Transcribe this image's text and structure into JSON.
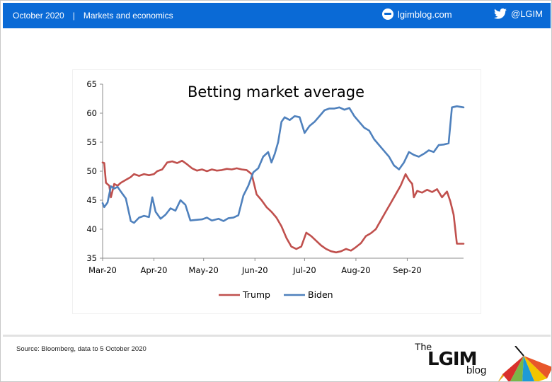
{
  "header": {
    "date": "October 2020",
    "separator": "|",
    "section": "Markets and economics",
    "site": "lgimblog.com",
    "twitter": "@LGIM"
  },
  "source_note": "Source: Bloomberg, data to 5 October 2020",
  "logo": {
    "the": "The",
    "name": "LGIM",
    "blog": "blog"
  },
  "colors": {
    "header_bg": "#0a6ad6",
    "trump": "#c0504d",
    "biden": "#4f81bd"
  },
  "chart_data": {
    "type": "line",
    "title": "Betting market average",
    "xlabel": "",
    "ylabel": "",
    "ylim": [
      35,
      65
    ],
    "yticks": [
      35,
      40,
      45,
      50,
      55,
      60,
      65
    ],
    "xlim": [
      "2020-03-01",
      "2020-10-05"
    ],
    "xticks": [
      {
        "date": "2020-03-01",
        "label": "Mar-20"
      },
      {
        "date": "2020-04-01",
        "label": "Apr-20"
      },
      {
        "date": "2020-05-01",
        "label": "May-20"
      },
      {
        "date": "2020-06-01",
        "label": "Jun-20"
      },
      {
        "date": "2020-07-01",
        "label": "Jul-20"
      },
      {
        "date": "2020-08-01",
        "label": "Aug-20"
      },
      {
        "date": "2020-09-01",
        "label": "Sep-20"
      }
    ],
    "grid": false,
    "legend": "bottom",
    "series": [
      {
        "name": "Trump",
        "color": "#c0504d",
        "points": [
          [
            "2020-03-01",
            51.5
          ],
          [
            "2020-03-02",
            51.4
          ],
          [
            "2020-03-03",
            48
          ],
          [
            "2020-03-05",
            47.5
          ],
          [
            "2020-03-06",
            45.5
          ],
          [
            "2020-03-08",
            47.8
          ],
          [
            "2020-03-10",
            47.5
          ],
          [
            "2020-03-12",
            48
          ],
          [
            "2020-03-15",
            48.5
          ],
          [
            "2020-03-18",
            49
          ],
          [
            "2020-03-20",
            49.5
          ],
          [
            "2020-03-23",
            49.2
          ],
          [
            "2020-03-26",
            49.5
          ],
          [
            "2020-03-29",
            49.3
          ],
          [
            "2020-04-01",
            49.5
          ],
          [
            "2020-04-03",
            50
          ],
          [
            "2020-04-06",
            50.3
          ],
          [
            "2020-04-09",
            51.5
          ],
          [
            "2020-04-12",
            51.7
          ],
          [
            "2020-04-15",
            51.4
          ],
          [
            "2020-04-18",
            51.8
          ],
          [
            "2020-04-21",
            51.2
          ],
          [
            "2020-04-24",
            50.5
          ],
          [
            "2020-04-27",
            50.1
          ],
          [
            "2020-04-30",
            50.3
          ],
          [
            "2020-05-03",
            50
          ],
          [
            "2020-05-06",
            50.3
          ],
          [
            "2020-05-09",
            50.1
          ],
          [
            "2020-05-12",
            50.2
          ],
          [
            "2020-05-15",
            50.4
          ],
          [
            "2020-05-18",
            50.3
          ],
          [
            "2020-05-21",
            50.5
          ],
          [
            "2020-05-24",
            50.3
          ],
          [
            "2020-05-27",
            50.2
          ],
          [
            "2020-05-30",
            49.5
          ],
          [
            "2020-06-02",
            46
          ],
          [
            "2020-06-05",
            45
          ],
          [
            "2020-06-08",
            43.8
          ],
          [
            "2020-06-11",
            43
          ],
          [
            "2020-06-14",
            42
          ],
          [
            "2020-06-17",
            40.5
          ],
          [
            "2020-06-20",
            38.5
          ],
          [
            "2020-06-23",
            37
          ],
          [
            "2020-06-26",
            36.6
          ],
          [
            "2020-06-29",
            37
          ],
          [
            "2020-07-02",
            39.4
          ],
          [
            "2020-07-05",
            38.8
          ],
          [
            "2020-07-08",
            38
          ],
          [
            "2020-07-11",
            37.2
          ],
          [
            "2020-07-14",
            36.6
          ],
          [
            "2020-07-17",
            36.2
          ],
          [
            "2020-07-20",
            36
          ],
          [
            "2020-07-23",
            36.2
          ],
          [
            "2020-07-26",
            36.6
          ],
          [
            "2020-07-29",
            36.3
          ],
          [
            "2020-08-01",
            36.9
          ],
          [
            "2020-08-04",
            37.6
          ],
          [
            "2020-08-07",
            38.8
          ],
          [
            "2020-08-10",
            39.3
          ],
          [
            "2020-08-13",
            40
          ],
          [
            "2020-08-16",
            41.5
          ],
          [
            "2020-08-19",
            43
          ],
          [
            "2020-08-22",
            44.5
          ],
          [
            "2020-08-25",
            46
          ],
          [
            "2020-08-28",
            47.5
          ],
          [
            "2020-08-31",
            49.5
          ],
          [
            "2020-09-02",
            48.5
          ],
          [
            "2020-09-04",
            47.8
          ],
          [
            "2020-09-05",
            45.5
          ],
          [
            "2020-09-07",
            46.6
          ],
          [
            "2020-09-10",
            46.3
          ],
          [
            "2020-09-13",
            46.8
          ],
          [
            "2020-09-16",
            46.4
          ],
          [
            "2020-09-19",
            46.9
          ],
          [
            "2020-09-22",
            45.5
          ],
          [
            "2020-09-25",
            46.5
          ],
          [
            "2020-09-27",
            44.8
          ],
          [
            "2020-09-29",
            42.5
          ],
          [
            "2020-10-01",
            37.5
          ],
          [
            "2020-10-05",
            37.5
          ]
        ]
      },
      {
        "name": "Biden",
        "color": "#4f81bd",
        "points": [
          [
            "2020-03-01",
            44.5
          ],
          [
            "2020-03-02",
            43.8
          ],
          [
            "2020-03-04",
            44.6
          ],
          [
            "2020-03-06",
            47.4
          ],
          [
            "2020-03-08",
            47
          ],
          [
            "2020-03-10",
            47.3
          ],
          [
            "2020-03-12",
            46.5
          ],
          [
            "2020-03-15",
            45.3
          ],
          [
            "2020-03-18",
            41.4
          ],
          [
            "2020-03-20",
            41.1
          ],
          [
            "2020-03-23",
            42
          ],
          [
            "2020-03-26",
            42.3
          ],
          [
            "2020-03-29",
            42.1
          ],
          [
            "2020-03-31",
            45.5
          ],
          [
            "2020-04-02",
            43
          ],
          [
            "2020-04-05",
            41.8
          ],
          [
            "2020-04-08",
            42.5
          ],
          [
            "2020-04-11",
            43.6
          ],
          [
            "2020-04-14",
            43.2
          ],
          [
            "2020-04-17",
            45
          ],
          [
            "2020-04-20",
            44.2
          ],
          [
            "2020-04-23",
            41.5
          ],
          [
            "2020-04-26",
            41.6
          ],
          [
            "2020-04-30",
            41.7
          ],
          [
            "2020-05-03",
            42
          ],
          [
            "2020-05-06",
            41.5
          ],
          [
            "2020-05-10",
            41.8
          ],
          [
            "2020-05-13",
            41.4
          ],
          [
            "2020-05-16",
            41.9
          ],
          [
            "2020-05-19",
            42
          ],
          [
            "2020-05-22",
            42.4
          ],
          [
            "2020-05-25",
            45.8
          ],
          [
            "2020-05-28",
            47.5
          ],
          [
            "2020-05-31",
            49.8
          ],
          [
            "2020-06-03",
            50.5
          ],
          [
            "2020-06-06",
            52.5
          ],
          [
            "2020-06-09",
            53.3
          ],
          [
            "2020-06-11",
            51.5
          ],
          [
            "2020-06-13",
            53
          ],
          [
            "2020-06-15",
            55
          ],
          [
            "2020-06-17",
            58.5
          ],
          [
            "2020-06-19",
            59.3
          ],
          [
            "2020-06-22",
            58.8
          ],
          [
            "2020-06-25",
            59.5
          ],
          [
            "2020-06-28",
            59.3
          ],
          [
            "2020-07-01",
            56.6
          ],
          [
            "2020-07-04",
            57.8
          ],
          [
            "2020-07-07",
            58.5
          ],
          [
            "2020-07-10",
            59.5
          ],
          [
            "2020-07-13",
            60.5
          ],
          [
            "2020-07-16",
            60.8
          ],
          [
            "2020-07-19",
            60.8
          ],
          [
            "2020-07-22",
            61
          ],
          [
            "2020-07-25",
            60.6
          ],
          [
            "2020-07-28",
            60.9
          ],
          [
            "2020-07-31",
            59.5
          ],
          [
            "2020-08-03",
            58.5
          ],
          [
            "2020-08-06",
            57.5
          ],
          [
            "2020-08-09",
            57
          ],
          [
            "2020-08-12",
            55.5
          ],
          [
            "2020-08-15",
            54.5
          ],
          [
            "2020-08-18",
            53.5
          ],
          [
            "2020-08-21",
            52.5
          ],
          [
            "2020-08-24",
            51
          ],
          [
            "2020-08-27",
            50.3
          ],
          [
            "2020-08-30",
            51.5
          ],
          [
            "2020-09-02",
            53.3
          ],
          [
            "2020-09-05",
            52.8
          ],
          [
            "2020-09-08",
            52.5
          ],
          [
            "2020-09-11",
            53
          ],
          [
            "2020-09-14",
            53.6
          ],
          [
            "2020-09-17",
            53.3
          ],
          [
            "2020-09-20",
            54.5
          ],
          [
            "2020-09-23",
            54.6
          ],
          [
            "2020-09-26",
            54.8
          ],
          [
            "2020-09-28",
            61
          ],
          [
            "2020-10-01",
            61.2
          ],
          [
            "2020-10-05",
            61
          ]
        ]
      }
    ]
  }
}
